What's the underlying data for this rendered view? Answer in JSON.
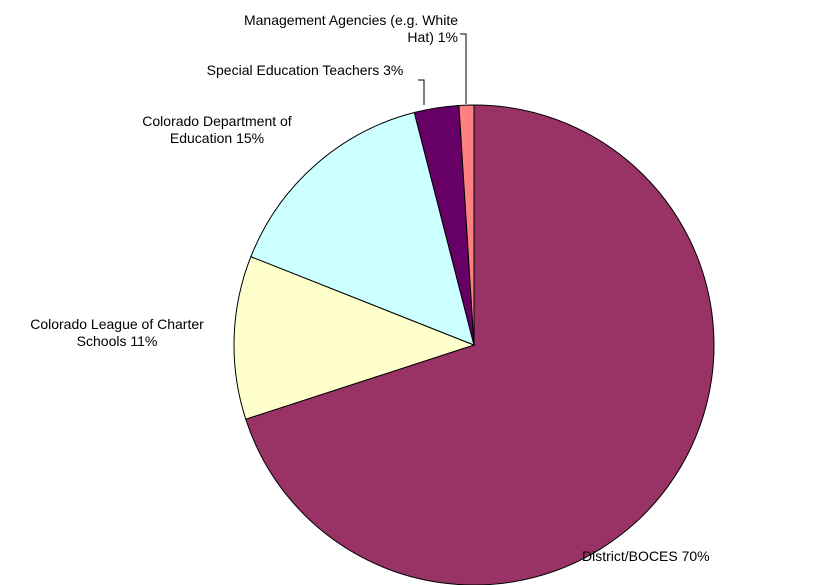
{
  "chart_data": {
    "type": "pie",
    "categories": [
      "District/BOCES",
      "Colorado League of Charter Schools",
      "Colorado Department of Education",
      "Special Education Teachers",
      "Management Agencies (e.g. White Hat)"
    ],
    "values": [
      70,
      11,
      15,
      3,
      1
    ],
    "value_labels": [
      "70%",
      "11%",
      "15%",
      "3%",
      "1%"
    ],
    "colors": [
      "#993366",
      "#ffffcc",
      "#ccffff",
      "#660066",
      "#ff8080"
    ]
  }
}
